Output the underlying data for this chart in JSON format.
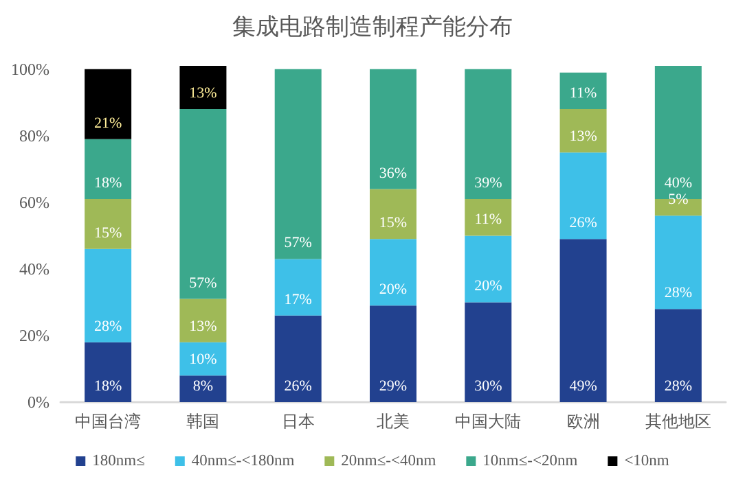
{
  "chart_data": {
    "type": "bar",
    "title": "集成电路制造制程产能分布",
    "stacked": true,
    "categories": [
      "中国台湾",
      "韩国",
      "日本",
      "北美",
      "中国大陆",
      "欧洲",
      "其他地区"
    ],
    "series": [
      {
        "name": "180nm≤",
        "color": "#22418f",
        "values": [
          18,
          8,
          26,
          29,
          30,
          49,
          28
        ],
        "value_labels": [
          "18%",
          "8%",
          "26%",
          "29%",
          "30%",
          "49%",
          "28%"
        ]
      },
      {
        "name": "40nm≤-<180nm",
        "color": "#3ec0e8",
        "values": [
          28,
          10,
          17,
          20,
          20,
          26,
          28
        ],
        "value_labels": [
          "28%",
          "10%",
          "17%",
          "20%",
          "20%",
          "26%",
          "28%"
        ]
      },
      {
        "name": "20nm≤-<40nm",
        "color": "#9fb957",
        "values": [
          15,
          13,
          null,
          15,
          11,
          13,
          5
        ],
        "value_labels": [
          "15%",
          "13%",
          null,
          "15%",
          "11%",
          "13%",
          "5%"
        ]
      },
      {
        "name": "10nm≤-<20nm",
        "color": "#3ba88c",
        "values": [
          18,
          57,
          57,
          36,
          39,
          11,
          40
        ],
        "value_labels": [
          "18%",
          "57%",
          "57%",
          "36%",
          "39%",
          "11%",
          "40%"
        ]
      },
      {
        "name": "<10nm",
        "color": "#000000",
        "values": [
          21,
          13,
          null,
          null,
          null,
          null,
          null
        ],
        "value_labels": [
          "21%",
          "13%",
          null,
          null,
          null,
          null,
          null
        ]
      }
    ],
    "ylim": [
      0,
      101
    ],
    "yticks": [
      {
        "value": 0,
        "label": "0%"
      },
      {
        "value": 20,
        "label": "20%"
      },
      {
        "value": 40,
        "label": "40%"
      },
      {
        "value": 60,
        "label": "60%"
      },
      {
        "value": 80,
        "label": "80%"
      },
      {
        "value": 100,
        "label": "100%"
      }
    ],
    "grid": false,
    "legend": "bottom"
  }
}
